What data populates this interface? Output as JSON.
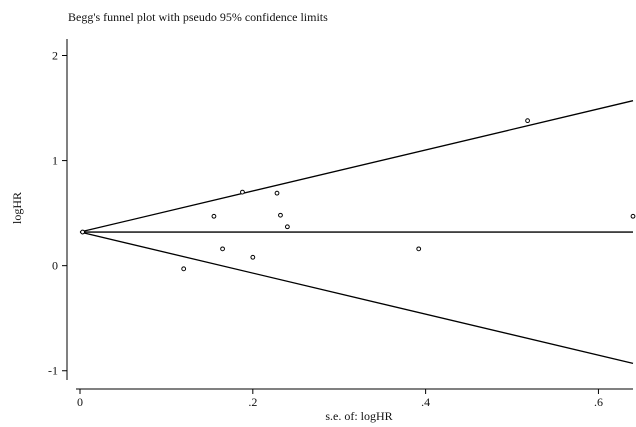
{
  "chart_data": {
    "type": "scatter",
    "title": "Begg's funnel plot with pseudo 95% confidence limits",
    "xlabel": "s.e. of: logHR",
    "ylabel": "logHR",
    "xlim": [
      0,
      0.64
    ],
    "ylim": [
      -1.05,
      2.1
    ],
    "x_ticks": [
      0,
      0.2,
      0.4,
      0.6
    ],
    "x_tick_labels": [
      "0",
      ".2",
      ".4",
      ".6"
    ],
    "y_ticks": [
      -1,
      0,
      1,
      2
    ],
    "y_tick_labels": [
      "-1",
      "0",
      "1",
      "2"
    ],
    "grid": false,
    "pooled_estimate": 0.32,
    "confidence_limits": {
      "center_line": {
        "x": [
          0,
          0.64
        ],
        "y": [
          0.32,
          0.32
        ]
      },
      "upper": {
        "x": [
          0,
          0.64
        ],
        "y": [
          0.32,
          1.57
        ]
      },
      "lower": {
        "x": [
          0,
          0.64
        ],
        "y": [
          0.32,
          -0.93
        ]
      }
    },
    "points": [
      {
        "x": 0.003,
        "y": 0.32
      },
      {
        "x": 0.12,
        "y": -0.03
      },
      {
        "x": 0.155,
        "y": 0.47
      },
      {
        "x": 0.165,
        "y": 0.16
      },
      {
        "x": 0.188,
        "y": 0.7
      },
      {
        "x": 0.2,
        "y": 0.08
      },
      {
        "x": 0.228,
        "y": 0.69
      },
      {
        "x": 0.232,
        "y": 0.48
      },
      {
        "x": 0.24,
        "y": 0.37
      },
      {
        "x": 0.392,
        "y": 0.16
      },
      {
        "x": 0.518,
        "y": 1.38
      },
      {
        "x": 0.64,
        "y": 0.47
      }
    ]
  }
}
